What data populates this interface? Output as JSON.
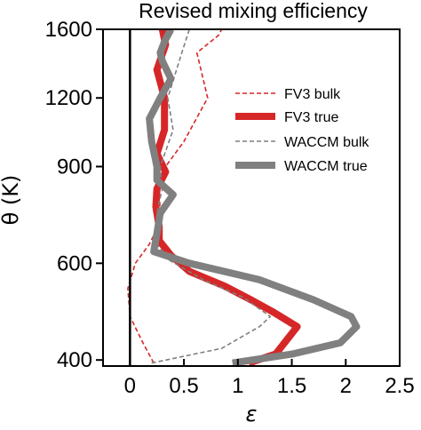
{
  "chart_data": {
    "type": "line",
    "title": "Revised mixing efficiency",
    "xlabel": "ε",
    "ylabel": "θ (K)",
    "xlim": [
      -0.25,
      2.5
    ],
    "ylim": [
      390,
      1600
    ],
    "y_scale": "log",
    "x_ticks": [
      0,
      0.5,
      1,
      1.5,
      2,
      2.5
    ],
    "x_tick_labels": [
      "0",
      "0.5",
      "1",
      "1.5",
      "2",
      "2.5"
    ],
    "y_ticks": [
      400,
      600,
      900,
      1200,
      1600
    ],
    "y_tick_labels": [
      "400",
      "600",
      "900",
      "1200",
      "1600"
    ],
    "reference_line_x": 0,
    "grid": false,
    "legend_position": "right",
    "series": [
      {
        "name": "FV3 bulk",
        "color": "#d62728",
        "style": "dashed",
        "width": "thin",
        "x": [
          0.22,
          0.12,
          0.0,
          -0.02,
          0.05,
          0.18,
          0.26,
          0.28,
          0.27,
          0.29,
          0.33,
          0.5,
          0.72,
          0.62,
          0.82,
          0.85
        ],
        "y": [
          395,
          430,
          480,
          540,
          600,
          650,
          700,
          750,
          800,
          860,
          900,
          1000,
          1200,
          1450,
          1560,
          1600
        ]
      },
      {
        "name": "FV3 true",
        "color": "#d62728",
        "style": "solid",
        "width": "thick",
        "x": [
          1.1,
          1.35,
          1.55,
          1.32,
          1.12,
          0.88,
          0.55,
          0.38,
          0.27,
          0.27,
          0.24,
          0.25,
          0.33,
          0.25,
          0.32,
          0.32,
          0.25,
          0.33,
          0.3
        ],
        "y": [
          395,
          410,
          460,
          490,
          515,
          545,
          580,
          620,
          660,
          700,
          760,
          820,
          880,
          950,
          1050,
          1200,
          1350,
          1500,
          1600
        ]
      },
      {
        "name": "WACCM bulk",
        "color": "#7f7f7f",
        "style": "dashed",
        "width": "thin",
        "x": [
          0.2,
          0.85,
          1.2,
          1.3,
          1.05,
          0.68,
          0.35,
          0.25,
          0.24,
          0.26,
          0.3,
          0.28,
          0.4,
          0.35,
          0.48,
          0.55
        ],
        "y": [
          395,
          420,
          460,
          480,
          520,
          560,
          610,
          650,
          700,
          760,
          820,
          900,
          1050,
          1200,
          1450,
          1600
        ]
      },
      {
        "name": "WACCM true",
        "color": "#808080",
        "style": "solid",
        "width": "thick",
        "x": [
          0.95,
          1.5,
          1.95,
          2.1,
          2.05,
          1.7,
          1.2,
          0.55,
          0.22,
          0.25,
          0.28,
          0.4,
          0.25,
          0.25,
          0.2,
          0.18,
          0.28,
          0.38,
          0.3,
          0.28,
          0.32,
          0.38
        ],
        "y": [
          395,
          410,
          430,
          460,
          480,
          515,
          560,
          600,
          630,
          680,
          740,
          800,
          850,
          900,
          1000,
          1100,
          1200,
          1300,
          1400,
          1450,
          1520,
          1600
        ]
      }
    ]
  }
}
